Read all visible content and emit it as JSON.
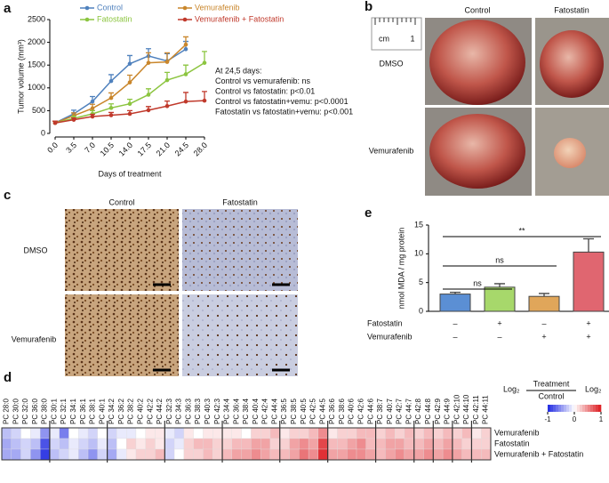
{
  "panel_labels": [
    "a",
    "b",
    "c",
    "d",
    "e"
  ],
  "chart_data": [
    {
      "type": "line",
      "xlabel": "Days of treatment",
      "ylabel": "Tumor volume (mm³)",
      "x": [
        0,
        3.5,
        7,
        10.5,
        14,
        17.5,
        21,
        24.5,
        28
      ],
      "xlim": [
        0,
        28
      ],
      "xticks": [
        {
          "value": 0,
          "label": "0.0"
        },
        {
          "value": 3.5,
          "label": "3.5"
        },
        {
          "value": 7,
          "label": "7.0"
        },
        {
          "value": 10.5,
          "label": "10.5"
        },
        {
          "value": 14,
          "label": "14.0"
        },
        {
          "value": 17.5,
          "label": "17.5"
        },
        {
          "value": 21,
          "label": "21.0"
        },
        {
          "value": 24.5,
          "label": "24.5"
        },
        {
          "value": 28,
          "label": "28.0"
        }
      ],
      "ylim": [
        0,
        2500
      ],
      "yticks": [
        0,
        500,
        1000,
        1500,
        2000,
        2500
      ],
      "series": [
        {
          "name": "Control",
          "color": "#4f81bd",
          "values": [
            230,
            430,
            700,
            1150,
            1530,
            1700,
            1590,
            1850,
            null
          ],
          "errors": [
            40,
            80,
            110,
            140,
            180,
            160,
            160,
            170,
            null
          ]
        },
        {
          "name": "Vemurafenib",
          "color": "#c9862b",
          "values": [
            230,
            390,
            550,
            780,
            1120,
            1550,
            1570,
            1950,
            null
          ],
          "errors": [
            40,
            60,
            90,
            110,
            160,
            220,
            200,
            170,
            null
          ]
        },
        {
          "name": "Fatostatin",
          "color": "#8cc540",
          "values": [
            230,
            330,
            430,
            560,
            650,
            850,
            1170,
            1300,
            1550
          ],
          "errors": [
            40,
            50,
            70,
            90,
            100,
            130,
            170,
            200,
            250
          ]
        },
        {
          "name": "Vemurafenib + Fatostatin",
          "color": "#c0392b",
          "values": [
            230,
            300,
            370,
            400,
            430,
            510,
            600,
            700,
            720
          ],
          "errors": [
            40,
            40,
            50,
            60,
            70,
            80,
            110,
            200,
            200
          ]
        }
      ],
      "annotations": [
        "At 24,5 days:",
        "Control vs vemurafenib: ns",
        "Control vs fatostatin: p<0.01",
        "Control vs fatostatin+vemu: p<0.0001",
        "Fatostatin vs fatostatin+vemu: p<0.001"
      ]
    },
    {
      "type": "bar",
      "ylabel": "nmol MDA / mg protein",
      "values": [
        3.0,
        4.2,
        2.6,
        10.3
      ],
      "errors": [
        0.3,
        0.6,
        0.5,
        2.3
      ],
      "colors": [
        "#5b8fd4",
        "#a7d86b",
        "#e0a65a",
        "#e06670"
      ],
      "ylim": [
        0,
        15
      ],
      "yticks": [
        0,
        5,
        10,
        15
      ],
      "treatments": [
        {
          "label": "Fatostatin",
          "signs": [
            "–",
            "+",
            "–",
            "+"
          ]
        },
        {
          "label": "Vemurafenib",
          "signs": [
            "–",
            "–",
            "+",
            "+"
          ]
        }
      ],
      "significance": [
        "**",
        "ns",
        "ns"
      ]
    },
    {
      "type": "heatmap",
      "columns": [
        "PC 28:0",
        "PC 30:0",
        "PC 32:0",
        "PC 36:0",
        "PC 38:0",
        "PC 30:1",
        "PC 32:1",
        "PC 34:1",
        "PC 36:1",
        "PC 38:1",
        "PC 40:1",
        "PC 34:2",
        "PC 36:2",
        "PC 38:2",
        "PC 40:2",
        "PC 42:2",
        "PC 44:2",
        "PC 32:3",
        "PC 34:3",
        "PC 36:3",
        "PC 38:3",
        "PC 40:3",
        "PC 42:3",
        "PC 34:4",
        "PC 36:4",
        "PC 38:4",
        "PC 40:4",
        "PC 42:4",
        "PC 44:4",
        "PC 36:5",
        "PC 38:5",
        "PC 40:5",
        "PC 42:5",
        "PC 44:5",
        "PC 36:6",
        "PC 38:6",
        "PC 40:6",
        "PC 42:6",
        "PC 44:6",
        "PC 38:7",
        "PC 40:7",
        "PC 42:7",
        "PC 44:7",
        "PC 42:8",
        "PC 44:8",
        "PC 42:9",
        "PC 44:9",
        "PC 42:10",
        "PC 44:10",
        "PC 42:11",
        "PC 44:11"
      ],
      "rows": [
        "Vemurafenib",
        "Fatostatin",
        "Vemurafenib + Fatostatin"
      ],
      "values": [
        [
          -0.3,
          -0.2,
          0,
          -0.1,
          -0.5,
          -0.1,
          -0.6,
          0,
          -0.1,
          -0.2,
          0,
          -0.2,
          -0.1,
          -0.1,
          0,
          0.1,
          0.1,
          -0.1,
          -0.2,
          0.1,
          0,
          0.1,
          0.1,
          0.1,
          0.1,
          0,
          0.2,
          0.2,
          0.3,
          0.1,
          0.2,
          0.2,
          0.3,
          0.5,
          0.1,
          0.2,
          0.2,
          0.3,
          0.3,
          0.2,
          0.3,
          0.2,
          0.3,
          0.2,
          0.3,
          0.2,
          0.3,
          0.2,
          0.3,
          0.1,
          0.2
        ],
        [
          -0.4,
          -0.3,
          -0.2,
          -0.3,
          -0.8,
          -0.2,
          -0.3,
          -0.1,
          -0.2,
          -0.3,
          -0.1,
          -0.3,
          0,
          0.2,
          0.1,
          0.2,
          0.1,
          -0.2,
          -0.1,
          0.2,
          0.3,
          0.3,
          0.2,
          0.2,
          0.3,
          0.3,
          0.4,
          0.4,
          0.2,
          0.2,
          0.4,
          0.5,
          0.4,
          0.8,
          0.3,
          0.3,
          0.4,
          0.5,
          0.3,
          0.3,
          0.4,
          0.4,
          0.3,
          0.3,
          0.4,
          0.3,
          0.4,
          0.3,
          0.2,
          0.2,
          0.2
        ],
        [
          -0.4,
          -0.4,
          -0.2,
          -0.5,
          -0.9,
          -0.3,
          -0.2,
          -0.1,
          -0.3,
          -0.5,
          -0.2,
          -0.4,
          -0.1,
          0.1,
          0.2,
          0.2,
          0.3,
          -0.2,
          0,
          0.2,
          0.2,
          0.3,
          0.2,
          0.3,
          0.4,
          0.4,
          0.5,
          0.4,
          0.3,
          0.3,
          0.4,
          0.6,
          0.5,
          0.9,
          0.4,
          0.4,
          0.5,
          0.5,
          0.4,
          0.3,
          0.4,
          0.5,
          0.4,
          0.4,
          0.5,
          0.4,
          0.5,
          0.4,
          0.3,
          0.3,
          0.3
        ]
      ],
      "scale_title": {
        "prefix": "Log₂",
        "numerator": "Treatment",
        "denominator": "Control"
      },
      "colorbar_label": "Log₂",
      "colorbar_lim": [
        -1,
        1
      ],
      "colorbar_ticks": [
        -1,
        0,
        1
      ]
    }
  ],
  "photos": {
    "columns": [
      "Control",
      "Fatostatin"
    ],
    "rows": [
      "DMSO",
      "Vemurafenib"
    ],
    "scale_unit": "cm",
    "scale_value": "1"
  },
  "histology": {
    "columns": [
      "Control",
      "Fatostatin"
    ],
    "rows": [
      "DMSO",
      "Vemurafenib"
    ]
  }
}
